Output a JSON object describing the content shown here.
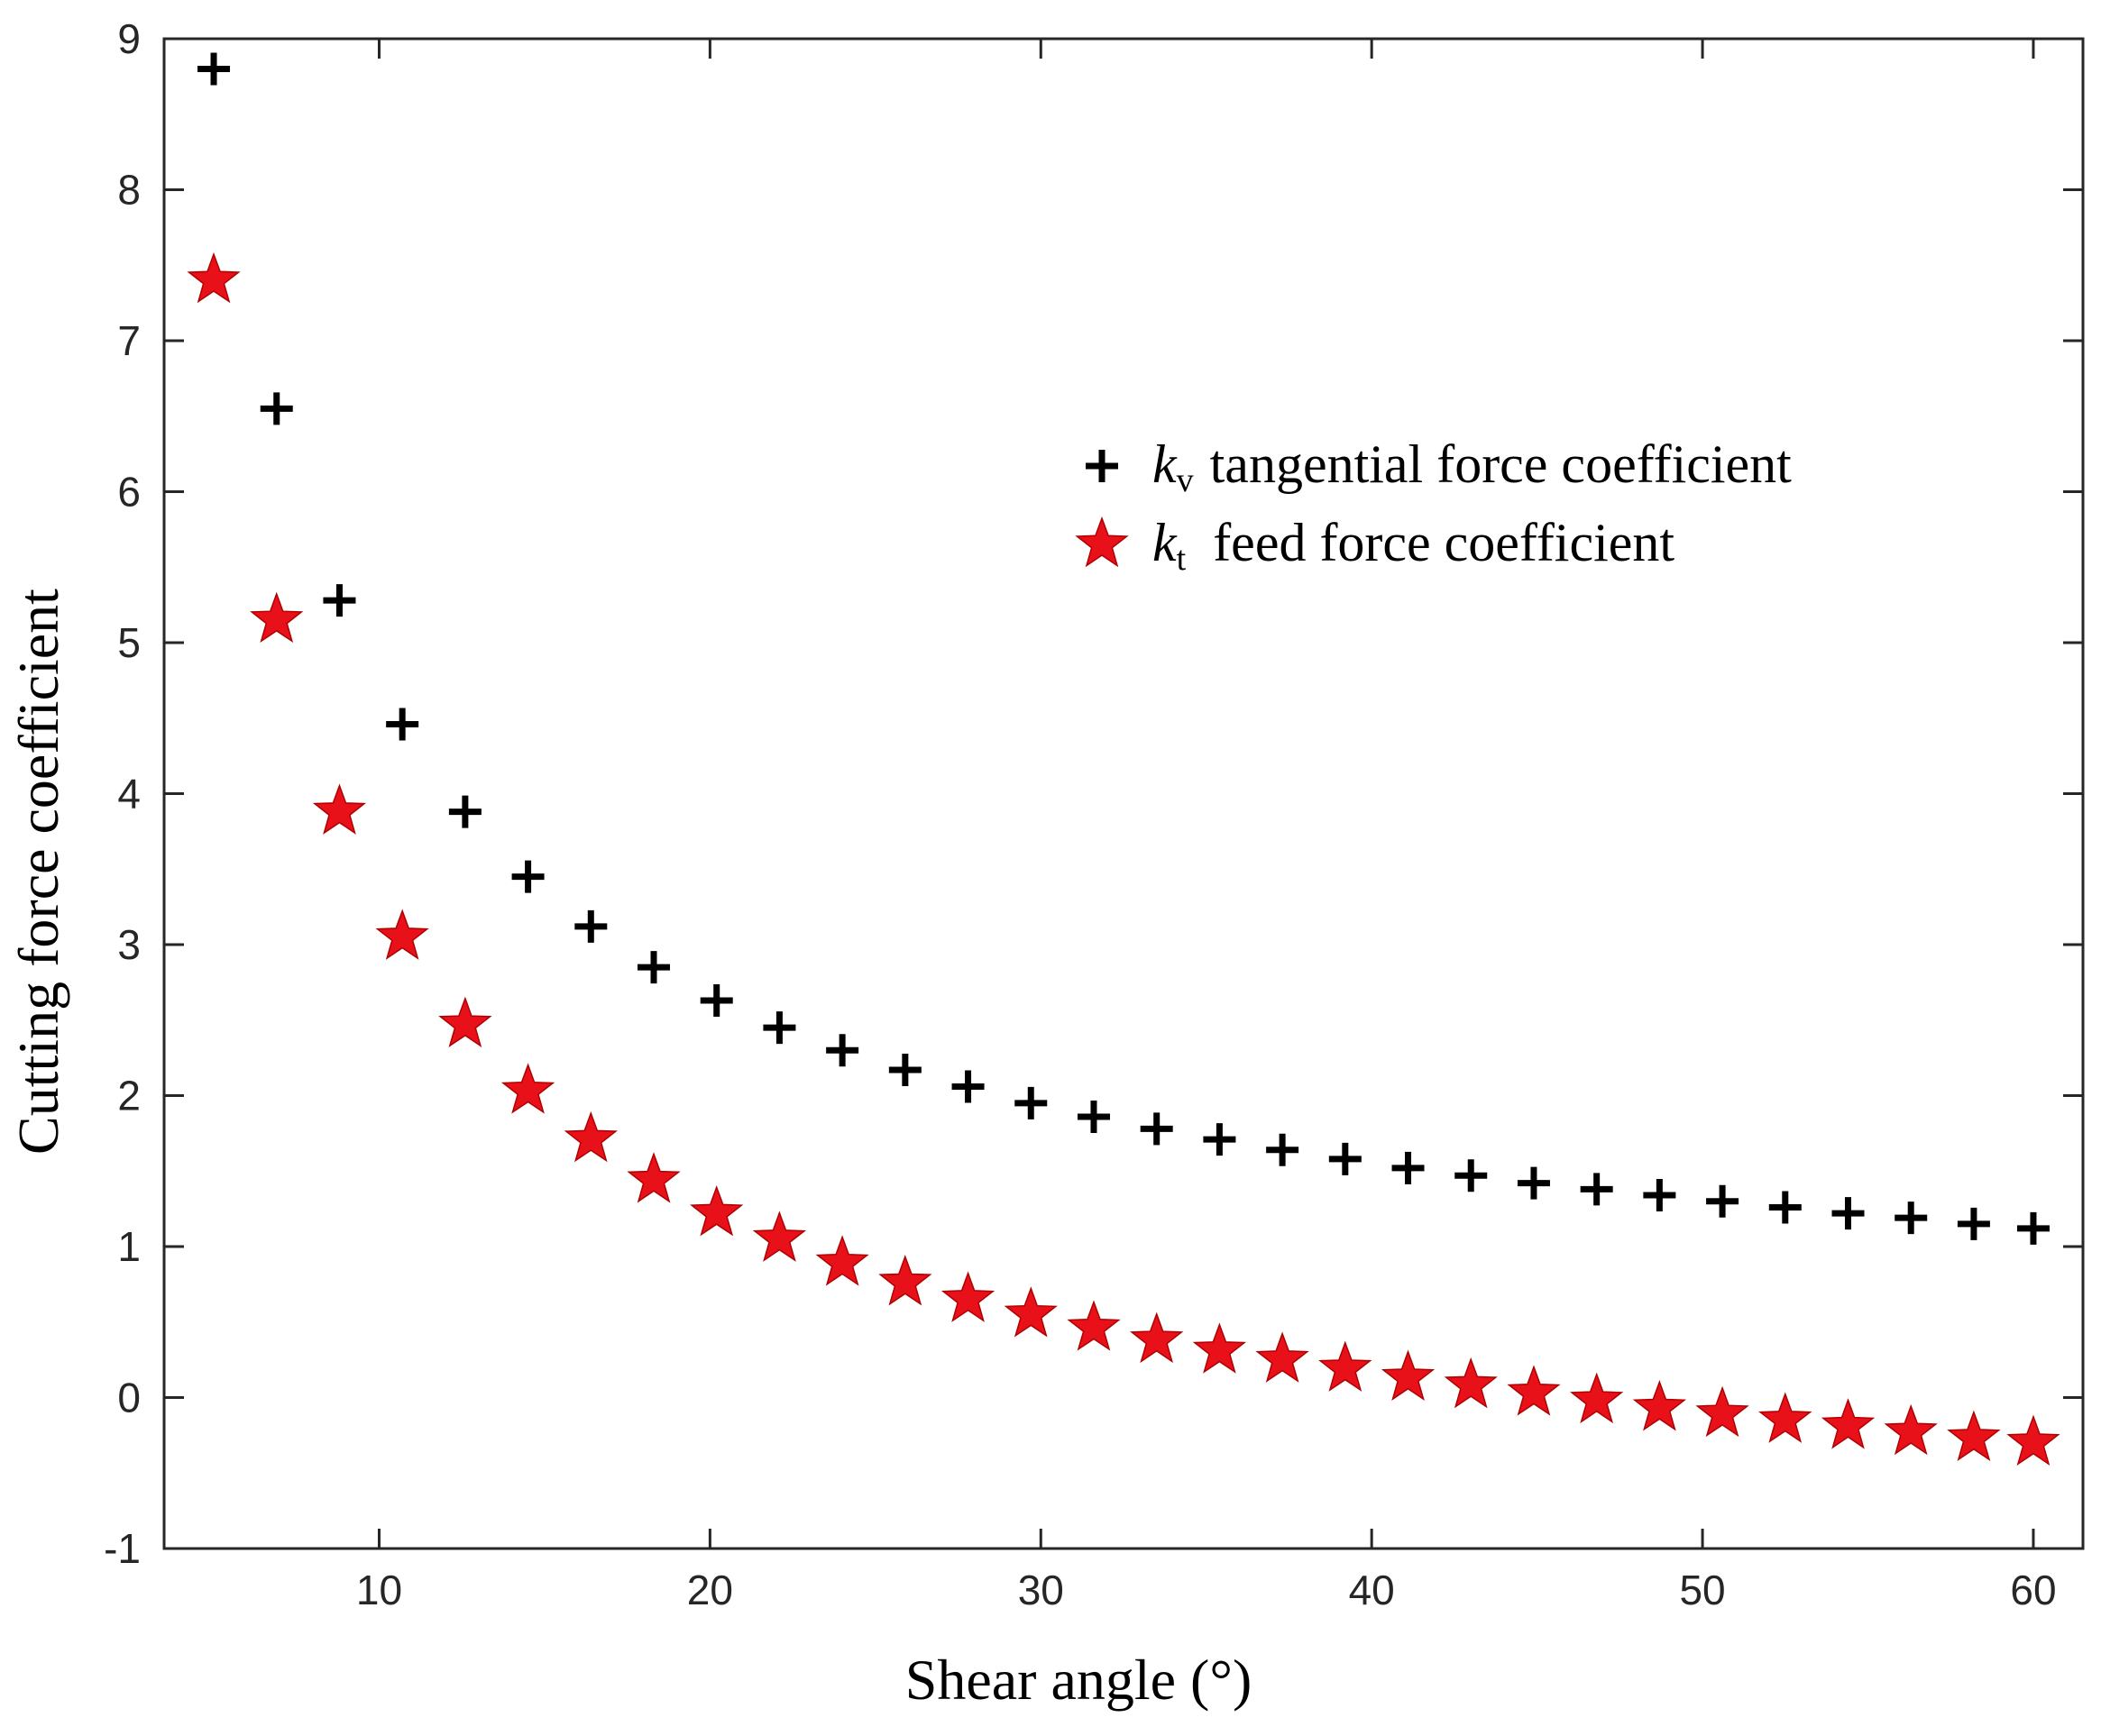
{
  "chart_data": {
    "type": "scatter",
    "xlabel": "Shear angle (°)",
    "ylabel": "Cutting force coefficient",
    "xlim": [
      3.5,
      61.5
    ],
    "ylim": [
      -1,
      9
    ],
    "xticks": [
      10,
      20,
      30,
      40,
      50,
      60
    ],
    "yticks": [
      -1,
      0,
      1,
      2,
      3,
      4,
      5,
      6,
      7,
      8,
      9
    ],
    "grid": false,
    "legend_position": "upper-right",
    "x": [
      5,
      6.9,
      8.8,
      10.7,
      12.6,
      14.5,
      16.4,
      18.3,
      20.2,
      22.1,
      24.0,
      25.9,
      27.8,
      29.7,
      31.6,
      33.5,
      35.4,
      37.3,
      39.2,
      41.1,
      43.0,
      44.9,
      46.8,
      48.7,
      50.6,
      52.5,
      54.4,
      56.3,
      58.2,
      60
    ],
    "series": [
      {
        "name": "tangential force coefficient",
        "symbol": "k",
        "subscript": "v",
        "marker": "plus",
        "color": "#000000",
        "values": [
          8.8,
          6.55,
          5.28,
          4.46,
          3.88,
          3.45,
          3.12,
          2.85,
          2.63,
          2.45,
          2.3,
          2.17,
          2.06,
          1.95,
          1.86,
          1.78,
          1.71,
          1.64,
          1.58,
          1.52,
          1.47,
          1.42,
          1.38,
          1.34,
          1.3,
          1.26,
          1.22,
          1.19,
          1.15,
          1.12
        ]
      },
      {
        "name": "feed force coefficient",
        "symbol": "k",
        "subscript": "t",
        "marker": "star",
        "color": "#e8111a",
        "values": [
          7.4,
          5.15,
          3.88,
          3.05,
          2.47,
          2.03,
          1.71,
          1.44,
          1.22,
          1.05,
          0.89,
          0.76,
          0.65,
          0.55,
          0.46,
          0.38,
          0.31,
          0.25,
          0.19,
          0.13,
          0.08,
          0.03,
          -0.02,
          -0.07,
          -0.11,
          -0.15,
          -0.19,
          -0.23,
          -0.27,
          -0.3
        ]
      }
    ]
  }
}
